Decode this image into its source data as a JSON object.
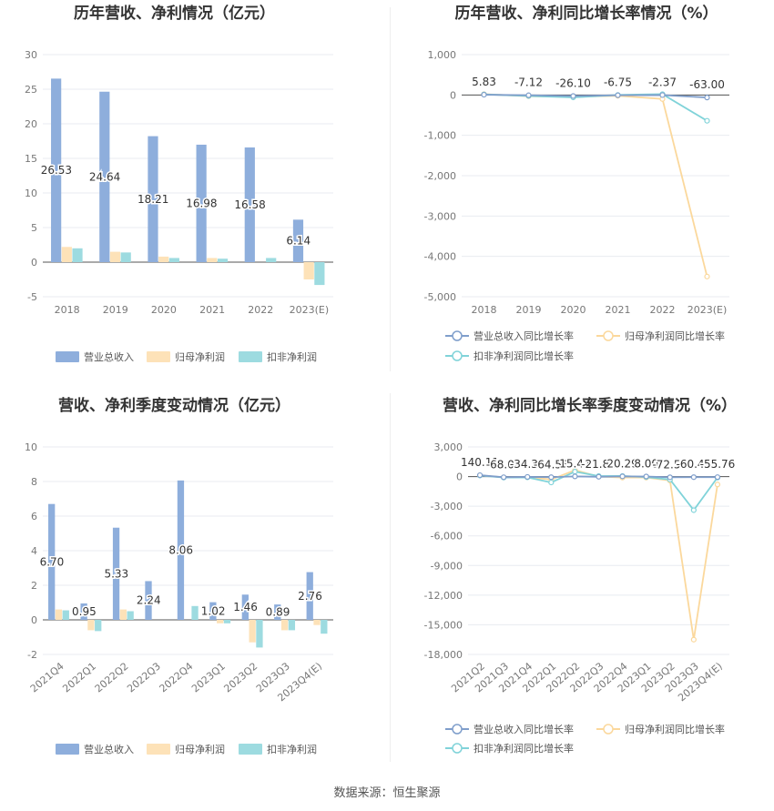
{
  "source_text": "数据来源：恒生聚源",
  "colors": {
    "revenue": "#8eaedc",
    "net_profit": "#fde2b8",
    "deducted_profit": "#9ddbe0",
    "revenue_line": "#7f9ecb",
    "net_line": "#fbd89c",
    "deducted_line": "#80d3d9"
  },
  "chart_data": [
    {
      "type": "bar",
      "title": "历年营收、净利情况（亿元）",
      "categories": [
        "2018",
        "2019",
        "2020",
        "2021",
        "2022",
        "2023(E)"
      ],
      "series": [
        {
          "name": "营业总收入",
          "values": [
            26.53,
            24.64,
            18.21,
            16.98,
            16.58,
            6.14
          ]
        },
        {
          "name": "归母净利润",
          "values": [
            2.2,
            1.5,
            0.8,
            0.6,
            0.0,
            -2.5
          ]
        },
        {
          "name": "扣非净利润",
          "values": [
            2.0,
            1.4,
            0.6,
            0.5,
            0.6,
            -3.3
          ]
        }
      ],
      "data_labels": [
        "26.53",
        "24.64",
        "18.21",
        "16.98",
        "16.58",
        "6.14"
      ],
      "yticks": [
        "30",
        "25",
        "20",
        "15",
        "10",
        "5",
        "0",
        "-5"
      ],
      "ylim": [
        -5,
        30
      ],
      "legend": "bottom"
    },
    {
      "type": "line",
      "title": "历年营收、净利同比增长率情况（%）",
      "categories": [
        "2018",
        "2019",
        "2020",
        "2021",
        "2022",
        "2023(E)"
      ],
      "series": [
        {
          "name": "营业总收入同比增长率",
          "values": [
            5.83,
            -7.12,
            -26.1,
            -6.75,
            -2.37,
            -63.0
          ]
        },
        {
          "name": "归母净利润同比增长率",
          "values": [
            20,
            -30,
            -45,
            -20,
            -100,
            -4500
          ]
        },
        {
          "name": "扣非净利润同比增长率",
          "values": [
            15,
            -25,
            -60,
            0,
            20,
            -640
          ]
        }
      ],
      "data_labels": [
        "5.83",
        "-7.12",
        "-26.10",
        "-6.75",
        "-2.37",
        "-63.00"
      ],
      "yticks": [
        "1,000",
        "0",
        "-1,000",
        "-2,000",
        "-3,000",
        "-4,000",
        "-5,000"
      ],
      "ylim": [
        -5000,
        1000
      ],
      "legend": "bottom"
    },
    {
      "type": "bar",
      "title": "营收、净利季度变动情况（亿元）",
      "categories": [
        "2021Q4",
        "2022Q1",
        "2022Q2",
        "2022Q3",
        "2022Q4",
        "2023Q1",
        "2023Q2",
        "2023Q3",
        "2023Q4(E)"
      ],
      "series": [
        {
          "name": "营业总收入",
          "values": [
            6.7,
            0.95,
            5.33,
            2.24,
            8.06,
            1.02,
            1.46,
            0.89,
            2.76
          ]
        },
        {
          "name": "归母净利润",
          "values": [
            0.6,
            -0.6,
            0.6,
            0.0,
            0.0,
            -0.2,
            -1.3,
            -0.6,
            -0.3
          ]
        },
        {
          "name": "扣非净利润",
          "values": [
            0.55,
            -0.65,
            0.5,
            0.0,
            0.8,
            -0.2,
            -1.6,
            -0.6,
            -0.8
          ]
        }
      ],
      "data_labels": [
        "6.70",
        "0.95",
        "5.33",
        "2.24",
        "8.06",
        "1.02",
        "1.46",
        "0.89",
        "2.76"
      ],
      "yticks": [
        "10",
        "8",
        "6",
        "4",
        "2",
        "0",
        "-2"
      ],
      "ylim": [
        -2,
        10
      ],
      "legend": "bottom"
    },
    {
      "type": "line",
      "title": "营收、净利同比增长率季度变动情况（%）",
      "categories": [
        "2021Q2",
        "2021Q3",
        "2021Q4",
        "2022Q1",
        "2022Q2",
        "2022Q3",
        "2022Q4",
        "2023Q1",
        "2023Q2",
        "2023Q3",
        "2023Q4(E)"
      ],
      "series": [
        {
          "name": "营业总收入同比增长率",
          "values": [
            140.11,
            -68.04,
            -34.36,
            -64.53,
            15.47,
            -21.83,
            20.29,
            8.0,
            -72.54,
            -60.45,
            -55.76
          ]
        },
        {
          "name": "归母净利润同比增长率",
          "values": [
            120,
            -80,
            -60,
            -300,
            650,
            0,
            -100,
            -100,
            -400,
            -16500,
            -800
          ]
        },
        {
          "name": "扣非净利润同比增长率",
          "values": [
            100,
            -100,
            -80,
            -600,
            500,
            50,
            60,
            -50,
            -300,
            -3400,
            -100
          ]
        }
      ],
      "data_labels": [
        "140.11",
        "-68.04",
        "-34.36",
        "-64.53",
        "15.47",
        "-21.83",
        "20.29",
        "8.00",
        "-72.54",
        "-60.45",
        "-55.76"
      ],
      "yticks": [
        "3,000",
        "0",
        "-3,000",
        "-6,000",
        "-9,000",
        "-12,000",
        "-15,000",
        "-18,000"
      ],
      "ylim": [
        -18000,
        3000
      ],
      "legend": "bottom"
    }
  ]
}
